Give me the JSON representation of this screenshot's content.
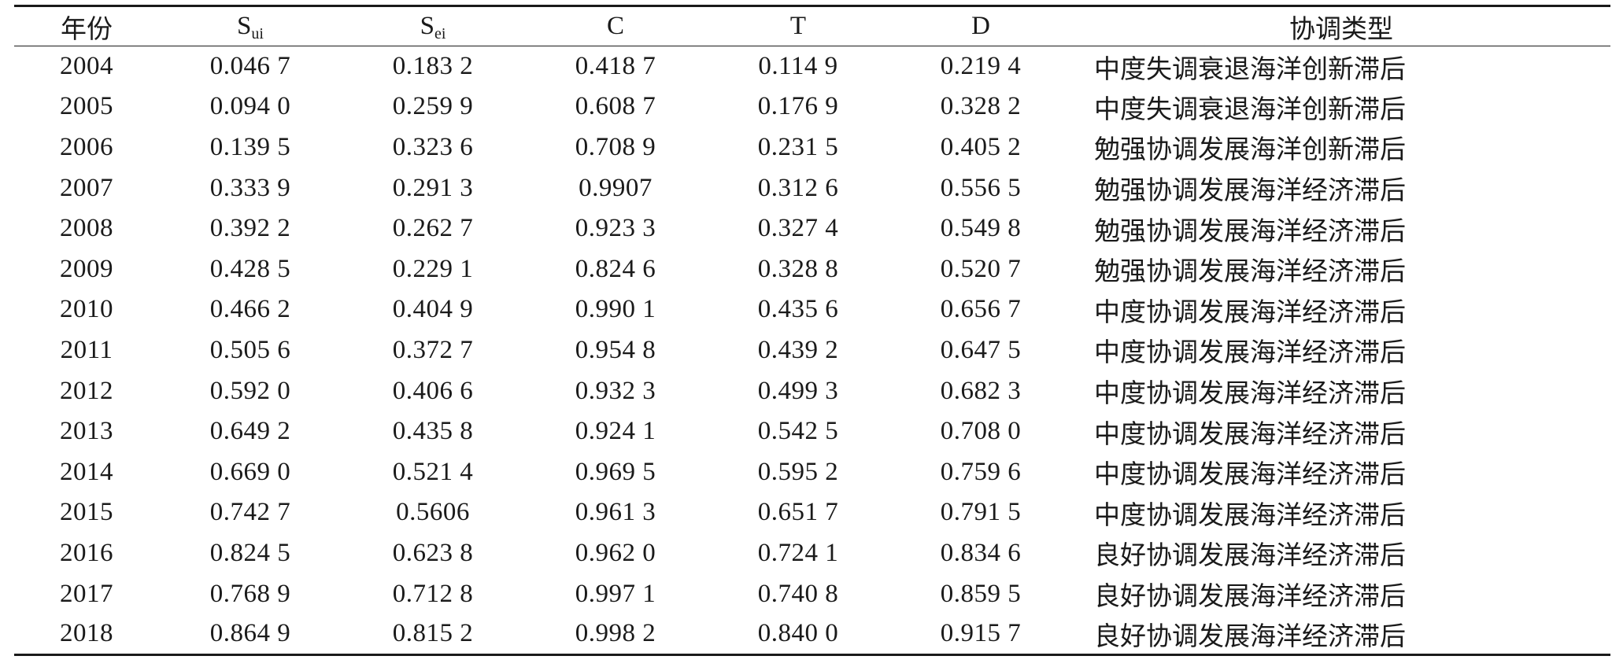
{
  "table": {
    "headers": {
      "year": "年份",
      "s_main": "S",
      "s_ui_sub": "ui",
      "s_ei_sub": "ei",
      "c": "C",
      "t": "T",
      "d": "D",
      "type": "协调类型"
    },
    "rows": [
      {
        "year": "2004",
        "sui": "0.046 7",
        "sei": "0.183 2",
        "c": "0.418 7",
        "t": "0.114 9",
        "d": "0.219 4",
        "type": "中度失调衰退海洋创新滞后"
      },
      {
        "year": "2005",
        "sui": "0.094 0",
        "sei": "0.259 9",
        "c": "0.608 7",
        "t": "0.176 9",
        "d": "0.328 2",
        "type": "中度失调衰退海洋创新滞后"
      },
      {
        "year": "2006",
        "sui": "0.139 5",
        "sei": "0.323 6",
        "c": "0.708 9",
        "t": "0.231 5",
        "d": "0.405 2",
        "type": "勉强协调发展海洋创新滞后"
      },
      {
        "year": "2007",
        "sui": "0.333 9",
        "sei": "0.291 3",
        "c": "0.9907",
        "t": "0.312 6",
        "d": "0.556 5",
        "type": "勉强协调发展海洋经济滞后"
      },
      {
        "year": "2008",
        "sui": "0.392 2",
        "sei": "0.262 7",
        "c": "0.923 3",
        "t": "0.327 4",
        "d": "0.549 8",
        "type": "勉强协调发展海洋经济滞后"
      },
      {
        "year": "2009",
        "sui": "0.428 5",
        "sei": "0.229 1",
        "c": "0.824 6",
        "t": "0.328 8",
        "d": "0.520 7",
        "type": "勉强协调发展海洋经济滞后"
      },
      {
        "year": "2010",
        "sui": "0.466 2",
        "sei": "0.404 9",
        "c": "0.990 1",
        "t": "0.435 6",
        "d": "0.656 7",
        "type": "中度协调发展海洋经济滞后"
      },
      {
        "year": "2011",
        "sui": "0.505 6",
        "sei": "0.372 7",
        "c": "0.954 8",
        "t": "0.439 2",
        "d": "0.647 5",
        "type": "中度协调发展海洋经济滞后"
      },
      {
        "year": "2012",
        "sui": "0.592 0",
        "sei": "0.406 6",
        "c": "0.932 3",
        "t": "0.499 3",
        "d": "0.682 3",
        "type": "中度协调发展海洋经济滞后"
      },
      {
        "year": "2013",
        "sui": "0.649 2",
        "sei": "0.435 8",
        "c": "0.924 1",
        "t": "0.542 5",
        "d": "0.708 0",
        "type": "中度协调发展海洋经济滞后"
      },
      {
        "year": "2014",
        "sui": "0.669 0",
        "sei": "0.521 4",
        "c": "0.969 5",
        "t": "0.595 2",
        "d": "0.759 6",
        "type": "中度协调发展海洋经济滞后"
      },
      {
        "year": "2015",
        "sui": "0.742 7",
        "sei": "0.5606",
        "c": "0.961 3",
        "t": "0.651 7",
        "d": "0.791 5",
        "type": "中度协调发展海洋经济滞后"
      },
      {
        "year": "2016",
        "sui": "0.824 5",
        "sei": "0.623 8",
        "c": "0.962 0",
        "t": "0.724 1",
        "d": "0.834 6",
        "type": "良好协调发展海洋经济滞后"
      },
      {
        "year": "2017",
        "sui": "0.768 9",
        "sei": "0.712 8",
        "c": "0.997 1",
        "t": "0.740 8",
        "d": "0.859 5",
        "type": "良好协调发展海洋经济滞后"
      },
      {
        "year": "2018",
        "sui": "0.864 9",
        "sei": "0.815 2",
        "c": "0.998 2",
        "t": "0.840 0",
        "d": "0.915 7",
        "type": "良好协调发展海洋经济滞后"
      }
    ]
  }
}
